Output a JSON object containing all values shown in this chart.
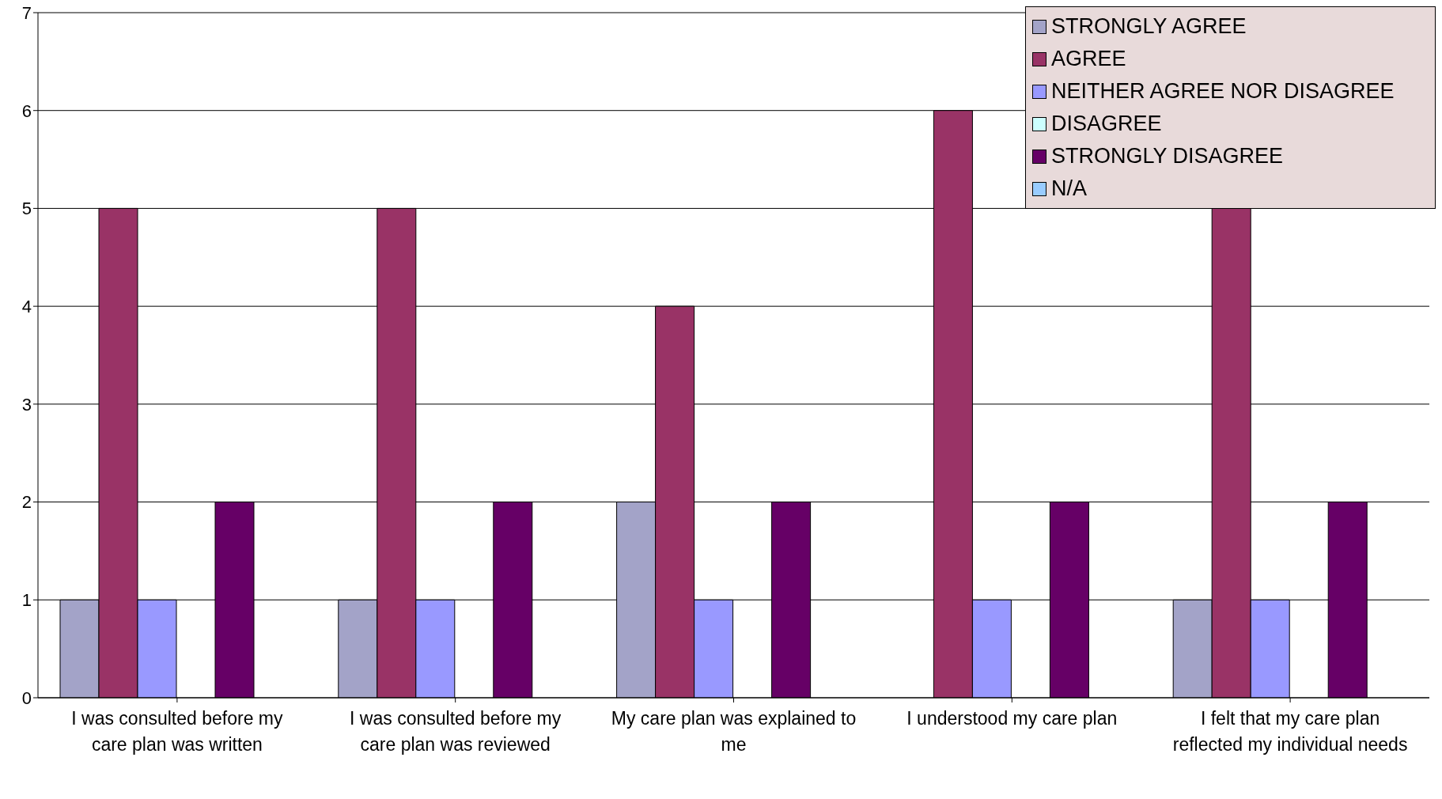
{
  "chart_data": {
    "type": "bar",
    "categories": [
      "I was consulted before my care plan was written",
      "I was consulted before my care plan was reviewed",
      "My care plan was explained to me",
      "I understood my care plan",
      "I felt that my care plan reflected my individual needs"
    ],
    "series": [
      {
        "name": "STRONGLY AGREE",
        "color": "#a3a3c8",
        "values": [
          1,
          1,
          2,
          0,
          1
        ]
      },
      {
        "name": "AGREE",
        "color": "#993366",
        "values": [
          5,
          5,
          4,
          6,
          5
        ]
      },
      {
        "name": "NEITHER AGREE NOR DISAGREE",
        "color": "#9999ff",
        "values": [
          1,
          1,
          1,
          1,
          1
        ]
      },
      {
        "name": "DISAGREE",
        "color": "#ccffff",
        "values": [
          0,
          0,
          0,
          0,
          0
        ]
      },
      {
        "name": "STRONGLY DISAGREE",
        "color": "#660066",
        "values": [
          2,
          2,
          2,
          2,
          2
        ]
      },
      {
        "name": "N/A",
        "color": "#99ccff",
        "values": [
          0,
          0,
          0,
          0,
          0
        ]
      }
    ],
    "ylim": [
      0,
      7
    ],
    "yticks": [
      0,
      1,
      2,
      3,
      4,
      5,
      6,
      7
    ],
    "grid": "y",
    "legend": "top right"
  }
}
